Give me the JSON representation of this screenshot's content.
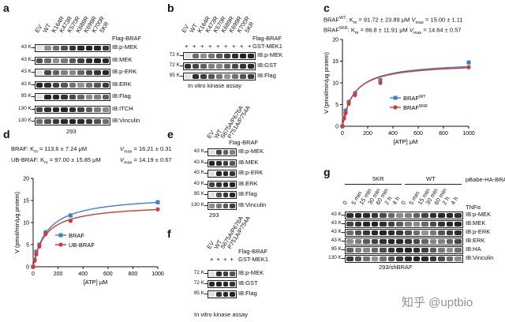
{
  "panel_a": {
    "label": "a",
    "lanes": [
      "EV",
      "WT",
      "K164R",
      "K473R",
      "K570R",
      "K689R",
      "K699R",
      "K700R",
      "5KR"
    ],
    "header": "Flag-BRAF",
    "blots": [
      {
        "mw": "43 K",
        "name": "IB:p-MEK"
      },
      {
        "mw": "43 K",
        "name": "IB:MEK"
      },
      {
        "mw": "43 K",
        "name": "IB:p-ERK"
      },
      {
        "mw": "43 K",
        "name": "IB:ERK"
      },
      {
        "mw": "95 K",
        "name": "IB:Flag"
      },
      {
        "mw": "130 K",
        "name": "IB:ITCH"
      },
      {
        "mw": "130 K",
        "name": "IB:Vinculin"
      }
    ],
    "cell_line": "293"
  },
  "panel_b": {
    "label": "b",
    "lanes": [
      "EV",
      "WT",
      "K164R",
      "K473R",
      "K570R",
      "K689R",
      "K699R",
      "K700R",
      "5KR"
    ],
    "rows": [
      {
        "name": "Flag-BRAF",
        "signs": [
          "",
          "",
          "",
          "",
          "",
          "",
          "",
          "",
          ""
        ]
      },
      {
        "name": "GST-MEK1",
        "signs": [
          "+",
          "+",
          "+",
          "+",
          "+",
          "+",
          "+",
          "+",
          "+"
        ]
      }
    ],
    "blots": [
      {
        "mw": "72 K",
        "name": "IB:p-MEK"
      },
      {
        "mw": "72 K",
        "name": "IB:GST"
      },
      {
        "mw": "95 K",
        "name": "IB:Flag"
      }
    ],
    "caption": "In vitro kinase assay"
  },
  "panel_c": {
    "label": "c",
    "stats": [
      {
        "name": "BRAF",
        "sup": "WT",
        "km": ": K",
        "km_sub": "m",
        "km_val": " = 91.72 ± 23.89 μM",
        "vmax": "V",
        "vmax_sub": "max",
        "vmax_val": " = 15.00 ± 1.11"
      },
      {
        "name": "BRAF",
        "sup": "5KR",
        "km": ": K",
        "km_sub": "m",
        "km_val": " = 86.8 ± 11.91 μM",
        "vmax": "V",
        "vmax_sub": "max",
        "vmax_val": " = 14.64 ± 0.57"
      }
    ]
  },
  "panel_d": {
    "label": "d",
    "stats": [
      {
        "text": "BRAF: K",
        "sub": "m",
        "val": " = 113.6 ± 7.24 μM",
        "vmax": "V",
        "vmax_sub": "max",
        "vmax_val": " = 16.21 ± 0.31"
      },
      {
        "text": "UB-BRAF: K",
        "sub": "m",
        "val": " = 97.00 ± 15.85 μM",
        "vmax": "V",
        "vmax_sub": "max",
        "vmax_val": " = 14.19 ± 0.67"
      }
    ]
  },
  "panel_e": {
    "label": "e",
    "lanes": [
      "EV",
      "WT",
      "S675A/P676A",
      "P751A/P754A"
    ],
    "header": "Flag-BRAF",
    "blots": [
      {
        "mw": "43 K",
        "name": "IB:p-MEK"
      },
      {
        "mw": "43 K",
        "name": "IB:MEK"
      },
      {
        "mw": "43 K",
        "name": "IB:p-ERK"
      },
      {
        "mw": "43 K",
        "name": "IB:ERK"
      },
      {
        "mw": "95 K",
        "name": "IB:Flag"
      },
      {
        "mw": "130 K",
        "name": "IB:Vinculin"
      }
    ],
    "cell_line": "293"
  },
  "panel_f": {
    "label": "f",
    "lanes": [
      "EV",
      "WT",
      "S675A/P676A",
      "P751A/P754A"
    ],
    "rows": [
      {
        "name": "Flag-BRAF",
        "signs": [
          "",
          "",
          "",
          ""
        ]
      },
      {
        "name": "GST-MEK1",
        "signs": [
          "+",
          "+",
          "+",
          "+"
        ]
      }
    ],
    "blots": [
      {
        "mw": "72 K",
        "name": "IB:p-MEK"
      },
      {
        "mw": "72 K",
        "name": "IB:GST"
      },
      {
        "mw": "95 K",
        "name": "IB:Flag"
      }
    ],
    "caption": "In vitro kinase assay"
  },
  "panel_g": {
    "label": "g",
    "groups": [
      "5KR",
      "WT"
    ],
    "header": "pBabe-HA-BRAF*",
    "time_lanes": [
      "0",
      "5 min",
      "15 min",
      "30 min",
      "60 min",
      "2 h",
      "4 h",
      "0",
      "5 min",
      "15 min",
      "30 min",
      "60 min",
      "2 h",
      "4 h"
    ],
    "treatment": "TNFα",
    "blots": [
      {
        "mw": "43 K",
        "name": "IB:p-MEK"
      },
      {
        "mw": "43 K",
        "name": "IB:MEK"
      },
      {
        "mw": "43 K",
        "name": "IB:p-ERK"
      },
      {
        "mw": "43 K",
        "name": "IB:ERK"
      },
      {
        "mw": "95 K",
        "name": "IB:HA"
      },
      {
        "mw": "130 K",
        "name": "IB:Vinculin"
      }
    ],
    "cell_line": "293/shBRAF"
  },
  "watermark": "知乎 @uptbio",
  "chart_data": [
    {
      "type": "line",
      "panel": "c",
      "xlabel": "[ATP] μM",
      "ylabel": "V (pmol/min/μg protein)",
      "xlim": [
        0,
        1000
      ],
      "ylim": [
        0,
        20
      ],
      "xticks": [
        0,
        200,
        400,
        600,
        800,
        1000
      ],
      "yticks": [
        0,
        5,
        10,
        15,
        20
      ],
      "legend_position": "center-right",
      "series": [
        {
          "name": "BRAF",
          "sup": "WT",
          "color": "#3c7ec8",
          "marker": "square",
          "x": [
            0,
            12.5,
            25,
            50,
            100,
            300,
            1000
          ],
          "y": [
            0,
            2.0,
            3.6,
            5.6,
            7.6,
            10.6,
            14.7
          ],
          "km": 91.72,
          "vmax": 15.0
        },
        {
          "name": "BRAF",
          "sup": "5KR",
          "color": "#d03a3a",
          "marker": "circle",
          "x": [
            0,
            12.5,
            25,
            50,
            100,
            300,
            1000
          ],
          "y": [
            0,
            1.8,
            3.0,
            5.2,
            7.2,
            10.0,
            13.6
          ],
          "km": 86.8,
          "vmax": 14.64
        }
      ]
    },
    {
      "type": "line",
      "panel": "d",
      "xlabel": "[ATP] μM",
      "ylabel": "V (pmol/min/μg protein)",
      "xlim": [
        0,
        1000
      ],
      "ylim": [
        0,
        20
      ],
      "xticks": [
        0,
        200,
        400,
        600,
        800,
        1000
      ],
      "yticks": [
        0,
        5,
        10,
        15,
        20
      ],
      "legend_position": "center",
      "series": [
        {
          "name": "BRAF",
          "color": "#3c7ec8",
          "marker": "square",
          "x": [
            0,
            12.5,
            25,
            50,
            100,
            300,
            1000
          ],
          "y": [
            0,
            1.6,
            3.4,
            5.0,
            7.8,
            11.6,
            14.6
          ],
          "km": 113.6,
          "vmax": 16.21
        },
        {
          "name": "UB-BRAF",
          "color": "#d03a3a",
          "marker": "circle",
          "x": [
            0,
            12.5,
            25,
            50,
            100,
            300,
            1000
          ],
          "y": [
            0,
            1.4,
            2.8,
            4.6,
            7.4,
            10.4,
            13.0
          ],
          "km": 97.0,
          "vmax": 14.19
        }
      ]
    }
  ]
}
